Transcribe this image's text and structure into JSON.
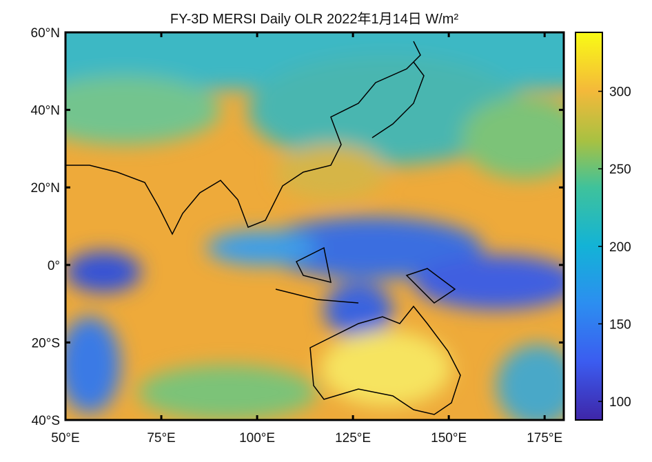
{
  "map": {
    "title": "FY-3D MERSI Daily OLR 2022年1月14日 W/m²",
    "xlim": [
      50,
      180
    ],
    "ylim": [
      -40,
      60
    ],
    "xticks": [
      {
        "value": 50,
        "label": "50°E"
      },
      {
        "value": 75,
        "label": "75°E"
      },
      {
        "value": 100,
        "label": "100°E"
      },
      {
        "value": 125,
        "label": "125°E"
      },
      {
        "value": 150,
        "label": "150°E"
      },
      {
        "value": 175,
        "label": "175°E"
      }
    ],
    "yticks": [
      {
        "value": 60,
        "label": "60°N"
      },
      {
        "value": 40,
        "label": "40°N"
      },
      {
        "value": 20,
        "label": "20°N"
      },
      {
        "value": 0,
        "label": "0°"
      },
      {
        "value": -20,
        "label": "20°S"
      },
      {
        "value": -40,
        "label": "40°S"
      }
    ],
    "colorbar": {
      "lim": [
        88,
        338
      ],
      "ticks": [
        100,
        150,
        200,
        250,
        300
      ]
    }
  }
}
